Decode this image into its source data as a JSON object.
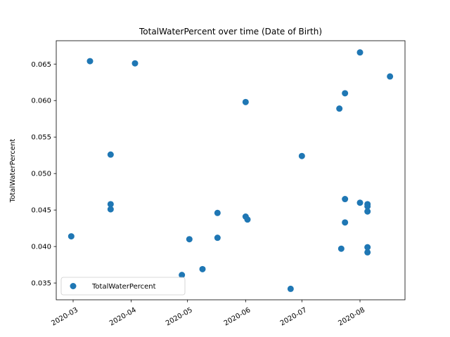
{
  "chart_data": {
    "type": "scatter",
    "title": "TotalWaterPercent over time (Date of Birth)",
    "xlabel": "",
    "ylabel": "TotalWaterPercent",
    "x_type": "date",
    "xlim": [
      "2020-02-21",
      "2020-08-25"
    ],
    "ylim": [
      0.0327,
      0.0682
    ],
    "x_ticks": [
      "2020-03-01",
      "2020-04-01",
      "2020-05-01",
      "2020-06-01",
      "2020-07-01",
      "2020-08-01"
    ],
    "x_tick_labels": [
      "2020-03",
      "2020-04",
      "2020-05",
      "2020-06",
      "2020-07",
      "2020-08"
    ],
    "y_ticks": [
      0.035,
      0.04,
      0.045,
      0.05,
      0.055,
      0.06,
      0.065
    ],
    "y_tick_labels": [
      "0.035",
      "0.040",
      "0.045",
      "0.050",
      "0.055",
      "0.060",
      "0.065"
    ],
    "grid": false,
    "legend": {
      "position": "lower-left",
      "entries": [
        "TotalWaterPercent"
      ]
    },
    "series": [
      {
        "name": "TotalWaterPercent",
        "color": "#1f77b4",
        "points": [
          {
            "x": "2020-02-29",
            "y": 0.0414
          },
          {
            "x": "2020-03-10",
            "y": 0.0654
          },
          {
            "x": "2020-03-21",
            "y": 0.0526
          },
          {
            "x": "2020-03-21",
            "y": 0.0458
          },
          {
            "x": "2020-03-21",
            "y": 0.0451
          },
          {
            "x": "2020-04-03",
            "y": 0.0651
          },
          {
            "x": "2020-04-28",
            "y": 0.0361
          },
          {
            "x": "2020-05-02",
            "y": 0.041
          },
          {
            "x": "2020-05-09",
            "y": 0.0369
          },
          {
            "x": "2020-05-17",
            "y": 0.0446
          },
          {
            "x": "2020-05-17",
            "y": 0.0412
          },
          {
            "x": "2020-06-01",
            "y": 0.0598
          },
          {
            "x": "2020-06-01",
            "y": 0.0441
          },
          {
            "x": "2020-06-02",
            "y": 0.0437
          },
          {
            "x": "2020-06-25",
            "y": 0.0342
          },
          {
            "x": "2020-07-01",
            "y": 0.0524
          },
          {
            "x": "2020-07-21",
            "y": 0.0589
          },
          {
            "x": "2020-07-22",
            "y": 0.0397
          },
          {
            "x": "2020-07-24",
            "y": 0.061
          },
          {
            "x": "2020-07-24",
            "y": 0.0465
          },
          {
            "x": "2020-07-24",
            "y": 0.0433
          },
          {
            "x": "2020-08-01",
            "y": 0.0666
          },
          {
            "x": "2020-08-01",
            "y": 0.046
          },
          {
            "x": "2020-08-05",
            "y": 0.0458
          },
          {
            "x": "2020-08-05",
            "y": 0.0455
          },
          {
            "x": "2020-08-05",
            "y": 0.0448
          },
          {
            "x": "2020-08-05",
            "y": 0.0399
          },
          {
            "x": "2020-08-05",
            "y": 0.0392
          },
          {
            "x": "2020-08-17",
            "y": 0.0633
          }
        ]
      }
    ]
  }
}
